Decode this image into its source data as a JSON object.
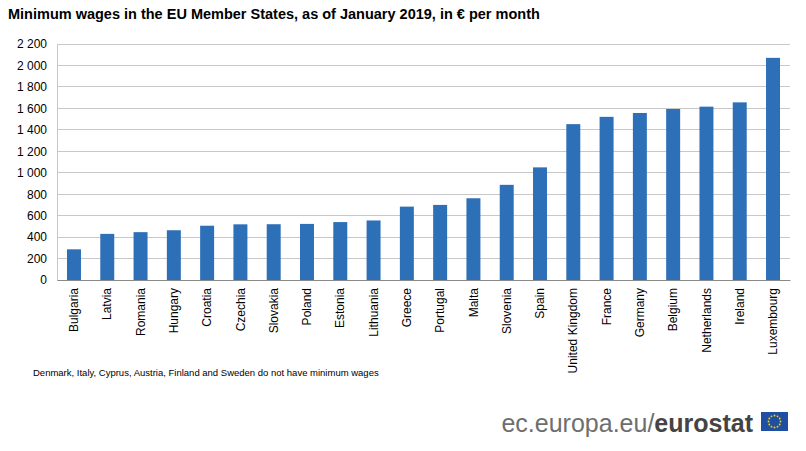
{
  "chart_data": {
    "type": "bar",
    "title": "Minimum wages in the EU Member States, as of January 2019, in € per month",
    "categories": [
      "Bulgaria",
      "Latvia",
      "Romania",
      "Hungary",
      "Croatia",
      "Czechia",
      "Slovakia",
      "Poland",
      "Estonia",
      "Lithuania",
      "Greece",
      "Portugal",
      "Malta",
      "Slovenia",
      "Spain",
      "United Kingdom",
      "France",
      "Germany",
      "Belgium",
      "Netherlands",
      "Ireland",
      "Luxembourg"
    ],
    "values": [
      286,
      430,
      446,
      464,
      506,
      519,
      520,
      523,
      540,
      555,
      684,
      700,
      762,
      887,
      1050,
      1453,
      1521,
      1557,
      1594,
      1616,
      1656,
      2071
    ],
    "color": "#2e70b8",
    "ylim": [
      0,
      2200
    ],
    "yticks": [
      0,
      200,
      400,
      600,
      800,
      {
        "value": 1000,
        "label": "1 000"
      },
      {
        "value": 1200,
        "label": "1 200"
      },
      {
        "value": 1400,
        "label": "1 400"
      },
      {
        "value": 1600,
        "label": "1 600"
      },
      {
        "value": 1800,
        "label": "1 800"
      },
      {
        "value": 2000,
        "label": "2 000"
      },
      {
        "value": 2200,
        "label": "2 200"
      }
    ],
    "grid": true,
    "annotations": [
      "Denmark, Italy, Cyprus, Austria, Finland and Sweden do not have minimum wages"
    ],
    "source": [
      "ec.europa.eu/",
      "eurostat"
    ]
  }
}
